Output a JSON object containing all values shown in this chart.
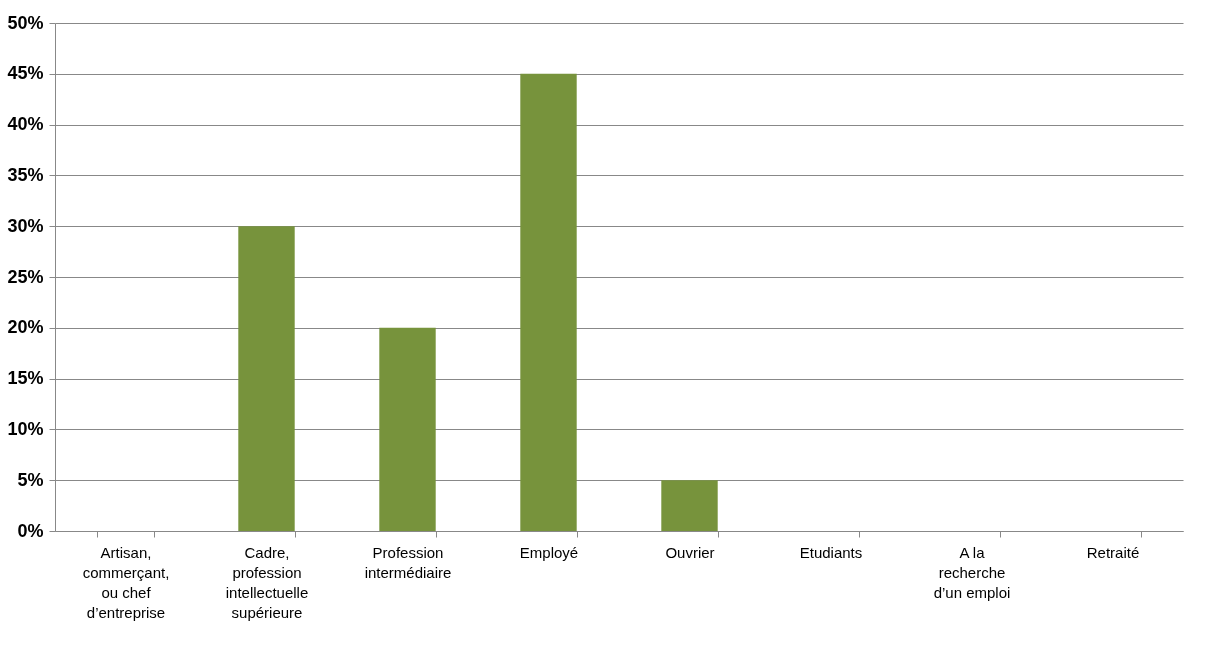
{
  "chart_data": {
    "type": "bar",
    "categories": [
      "Artisan, commerçant, ou chef d’entreprise",
      "Cadre, profession intellectuelle supérieure",
      "Profession intermédiaire",
      "Employé",
      "Ouvrier",
      "Etudiants",
      "A la recherche d’un emploi",
      "Retraité"
    ],
    "values": [
      0,
      30,
      20,
      45,
      5,
      0,
      0,
      0
    ],
    "color": "#77933c",
    "ylim": [
      0,
      50
    ],
    "yticks": [
      {
        "value": 0,
        "label": "0%"
      },
      {
        "value": 5,
        "label": "5%"
      },
      {
        "value": 10,
        "label": "10%"
      },
      {
        "value": 15,
        "label": "15%"
      },
      {
        "value": 20,
        "label": "20%"
      },
      {
        "value": 25,
        "label": "25%"
      },
      {
        "value": 30,
        "label": "30%"
      },
      {
        "value": 35,
        "label": "35%"
      },
      {
        "value": 40,
        "label": "40%"
      },
      {
        "value": 45,
        "label": "45%"
      },
      {
        "value": 50,
        "label": "50%"
      }
    ],
    "grid": "y"
  }
}
